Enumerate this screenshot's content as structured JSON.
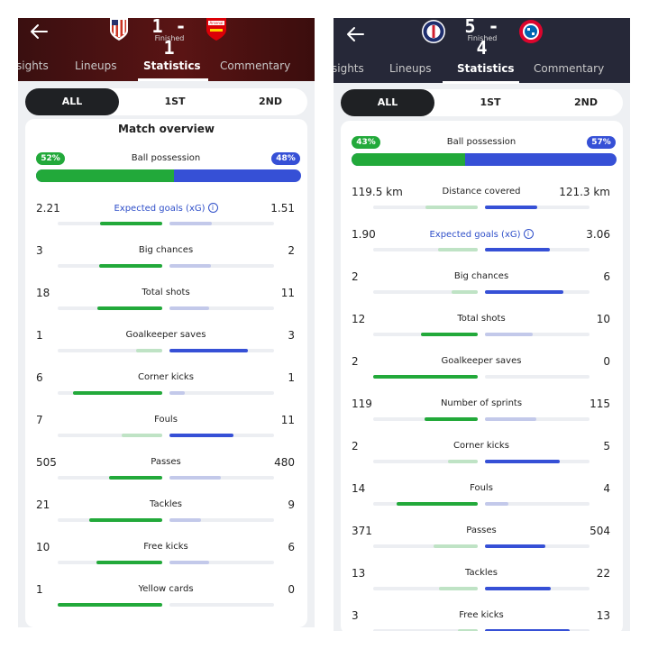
{
  "left": {
    "header": {
      "score": "1 - 1",
      "status": "Finished",
      "away_name": "Arsenal"
    },
    "tabs": [
      "sights",
      "Lineups",
      "Statistics",
      "Commentary"
    ],
    "period": [
      "ALL",
      "1ST",
      "2ND"
    ],
    "section_title": "Match overview",
    "possession": {
      "label": "Ball possession",
      "home": "52%",
      "away": "48%",
      "home_fraction": 0.52
    },
    "stats": [
      {
        "label": "Expected goals (xG)",
        "home": "2.21",
        "away": "1.51",
        "link": true
      },
      {
        "label": "Big chances",
        "home": "3",
        "away": "2"
      },
      {
        "label": "Total shots",
        "home": "18",
        "away": "11"
      },
      {
        "label": "Goalkeeper saves",
        "home": "1",
        "away": "3"
      },
      {
        "label": "Corner kicks",
        "home": "6",
        "away": "1"
      },
      {
        "label": "Fouls",
        "home": "7",
        "away": "11"
      },
      {
        "label": "Passes",
        "home": "505",
        "away": "480"
      },
      {
        "label": "Tackles",
        "home": "21",
        "away": "9"
      },
      {
        "label": "Free kicks",
        "home": "10",
        "away": "6"
      },
      {
        "label": "Yellow cards",
        "home": "1",
        "away": "0"
      }
    ]
  },
  "right": {
    "header": {
      "score": "5 - 4",
      "status": "Finished"
    },
    "tabs": [
      "sights",
      "Lineups",
      "Statistics",
      "Commentary"
    ],
    "period": [
      "ALL",
      "1ST",
      "2ND"
    ],
    "possession": {
      "label": "Ball possession",
      "home": "43%",
      "away": "57%",
      "home_fraction": 0.43
    },
    "stats": [
      {
        "label": "Distance covered",
        "home": "119.5 km",
        "away": "121.3 km"
      },
      {
        "label": "Expected goals (xG)",
        "home": "1.90",
        "away": "3.06",
        "link": true
      },
      {
        "label": "Big chances",
        "home": "2",
        "away": "6"
      },
      {
        "label": "Total shots",
        "home": "12",
        "away": "10"
      },
      {
        "label": "Goalkeeper saves",
        "home": "2",
        "away": "0"
      },
      {
        "label": "Number of sprints",
        "home": "119",
        "away": "115"
      },
      {
        "label": "Corner kicks",
        "home": "2",
        "away": "5"
      },
      {
        "label": "Fouls",
        "home": "14",
        "away": "4"
      },
      {
        "label": "Passes",
        "home": "371",
        "away": "504"
      },
      {
        "label": "Tackles",
        "home": "13",
        "away": "22"
      },
      {
        "label": "Free kicks",
        "home": "3",
        "away": "13"
      }
    ]
  },
  "colors": {
    "home": "#22a93a",
    "away": "#3650d6",
    "home_light": "#bfe3c5",
    "away_light": "#c3c9ea"
  }
}
